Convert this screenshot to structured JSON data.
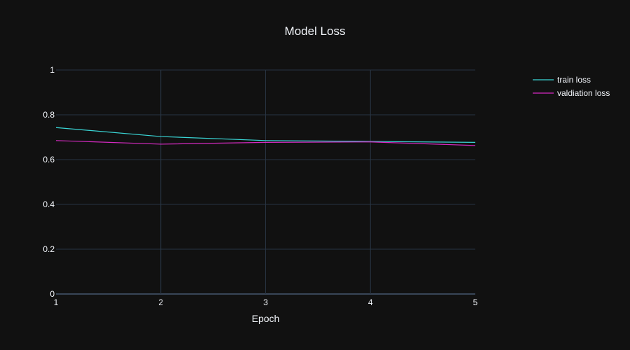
{
  "chart_data": {
    "type": "line",
    "title": "Model Loss",
    "xlabel": "Epoch",
    "ylabel": "",
    "x": [
      1,
      2,
      3,
      4,
      5
    ],
    "xlim": [
      1,
      5
    ],
    "ylim": [
      0,
      1
    ],
    "x_ticks": [
      "1",
      "2",
      "3",
      "4",
      "5"
    ],
    "y_ticks": [
      "0",
      "0.2",
      "0.4",
      "0.6",
      "0.8",
      "1"
    ],
    "grid": true,
    "legend_position": "top-right",
    "series": [
      {
        "name": "train loss",
        "color": "#3ad6d6",
        "values": [
          0.743,
          0.703,
          0.685,
          0.681,
          0.677
        ]
      },
      {
        "name": "valdiation loss",
        "color": "#d62ac2",
        "values": [
          0.685,
          0.669,
          0.677,
          0.679,
          0.663
        ]
      }
    ]
  }
}
